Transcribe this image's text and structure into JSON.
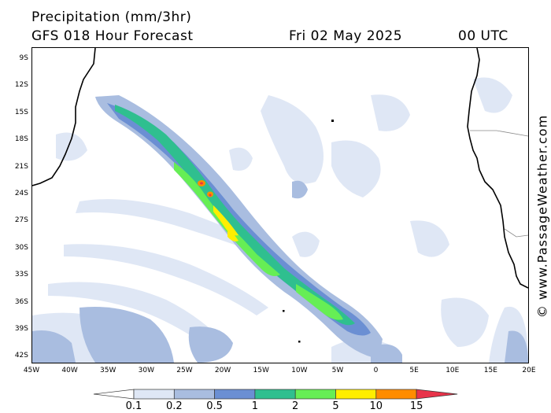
{
  "header": {
    "title": "Precipitation (mm/3hr)",
    "model": "GFS 018 Hour Forecast",
    "date": "Fri 02 May 2025",
    "time": "00 UTC"
  },
  "map": {
    "lat_labels": [
      "9S",
      "12S",
      "15S",
      "18S",
      "21S",
      "24S",
      "27S",
      "30S",
      "33S",
      "36S",
      "39S",
      "42S"
    ],
    "lon_labels": [
      "45W",
      "40W",
      "35W",
      "30W",
      "25W",
      "20W",
      "15W",
      "10W",
      "5W",
      "0",
      "5E",
      "10E",
      "15E",
      "20E"
    ],
    "credit": "© www.PassageWeather.com",
    "ocean_color": "#ffffff",
    "land_line_color": "#000000"
  },
  "legend": {
    "labels": [
      "0.1",
      "0.2",
      "0.5",
      "1",
      "2",
      "5",
      "10",
      "15"
    ],
    "colors": [
      "#ffffff",
      "#dfe7f5",
      "#a9bde0",
      "#6b8fd3",
      "#2fbf8f",
      "#66ee55",
      "#ffee00",
      "#ff8c00",
      "#e8334a"
    ]
  }
}
